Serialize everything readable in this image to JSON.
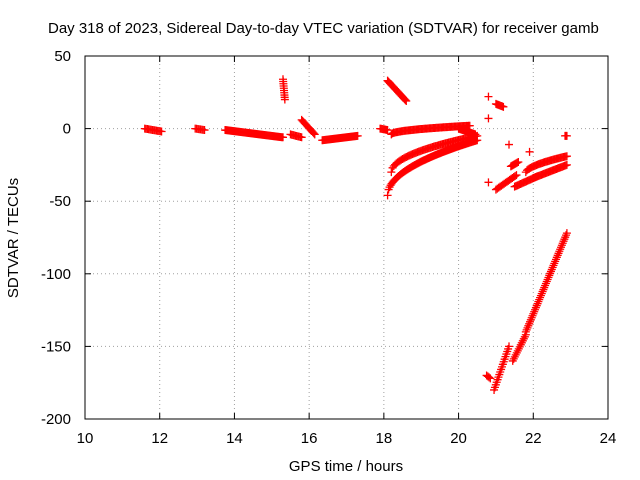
{
  "chart_data": {
    "type": "scatter",
    "title": "Day 318 of 2023, Sidereal Day-to-day VTEC variation (SDTVAR) for receiver gamb",
    "xlabel": "GPS time / hours",
    "ylabel": "SDTVAR / TECUs",
    "xlim": [
      10,
      24
    ],
    "ylim": [
      -200,
      50
    ],
    "xticks": [
      10,
      12,
      14,
      16,
      18,
      20,
      22,
      24
    ],
    "yticks": [
      -200,
      -150,
      -100,
      -50,
      0,
      50
    ],
    "xtick_labels": [
      "10",
      "12",
      "14",
      "16",
      "18",
      "20",
      "22",
      "24"
    ],
    "ytick_labels": [
      "-200",
      "-150",
      "-100",
      "-50",
      "0",
      "50"
    ],
    "grid": true,
    "marker": "+",
    "color": "#ff0000",
    "segments": [
      {
        "x0": 11.6,
        "x1": 12.05,
        "y0": 0,
        "y1": -2,
        "n": 14
      },
      {
        "x0": 12.95,
        "x1": 13.2,
        "y0": 0,
        "y1": -1,
        "n": 8
      },
      {
        "x0": 13.75,
        "x1": 15.3,
        "y0": -1,
        "y1": -6,
        "n": 60
      },
      {
        "x0": 15.3,
        "x1": 15.35,
        "y0": 34,
        "y1": 20,
        "n": 10
      },
      {
        "x0": 15.5,
        "x1": 15.8,
        "y0": -4,
        "y1": -6,
        "n": 10
      },
      {
        "x0": 15.8,
        "x1": 16.15,
        "y0": 6,
        "y1": -4,
        "n": 14
      },
      {
        "x0": 16.35,
        "x1": 17.3,
        "y0": -8,
        "y1": -5,
        "n": 36
      },
      {
        "x0": 17.9,
        "x1": 18.1,
        "y0": 0,
        "y1": -1,
        "n": 8
      },
      {
        "x0": 18.1,
        "x1": 18.6,
        "y0": 33,
        "y1": 19,
        "n": 24
      },
      {
        "x0": 18.2,
        "x1": 20.3,
        "y0": -4,
        "y1": 2,
        "n": 70,
        "curve": 0.5
      },
      {
        "x0": 18.1,
        "x1": 20.5,
        "y0": -46,
        "y1": -8,
        "n": 90,
        "curve": 0.5
      },
      {
        "x0": 18.2,
        "x1": 20.5,
        "y0": -30,
        "y1": -5,
        "n": 70,
        "curve": 0.5
      },
      {
        "x0": 20.0,
        "x1": 20.45,
        "y0": 0,
        "y1": -4,
        "n": 20
      },
      {
        "x0": 20.8,
        "x1": 20.8,
        "y0": 22,
        "y1": 22,
        "n": 1
      },
      {
        "x0": 20.8,
        "x1": 20.8,
        "y0": 7,
        "y1": 7,
        "n": 1
      },
      {
        "x0": 21.0,
        "x1": 21.2,
        "y0": 17,
        "y1": 15,
        "n": 8
      },
      {
        "x0": 20.8,
        "x1": 20.8,
        "y0": -37,
        "y1": -37,
        "n": 1
      },
      {
        "x0": 21.0,
        "x1": 21.55,
        "y0": -42,
        "y1": -32,
        "n": 16
      },
      {
        "x0": 21.35,
        "x1": 21.35,
        "y0": -11,
        "y1": -11,
        "n": 1
      },
      {
        "x0": 21.4,
        "x1": 21.6,
        "y0": -26,
        "y1": -23,
        "n": 8
      },
      {
        "x0": 21.5,
        "x1": 22.1,
        "y0": -40,
        "y1": -33,
        "n": 20
      },
      {
        "x0": 21.9,
        "x1": 21.9,
        "y0": -16,
        "y1": -16,
        "n": 1
      },
      {
        "x0": 21.8,
        "x1": 22.9,
        "y0": -30,
        "y1": -19,
        "n": 36,
        "curve": 0.6
      },
      {
        "x0": 22.0,
        "x1": 22.9,
        "y0": -34,
        "y1": -25,
        "n": 30
      },
      {
        "x0": 22.85,
        "x1": 22.9,
        "y0": -5,
        "y1": -5,
        "n": 3
      },
      {
        "x0": 20.75,
        "x1": 20.85,
        "y0": -170,
        "y1": -172,
        "n": 4
      },
      {
        "x0": 20.95,
        "x1": 21.35,
        "y0": -180,
        "y1": -150,
        "n": 18
      },
      {
        "x0": 21.45,
        "x1": 21.8,
        "y0": -160,
        "y1": -142,
        "n": 14
      },
      {
        "x0": 21.8,
        "x1": 22.9,
        "y0": -140,
        "y1": -72,
        "n": 50
      }
    ]
  }
}
